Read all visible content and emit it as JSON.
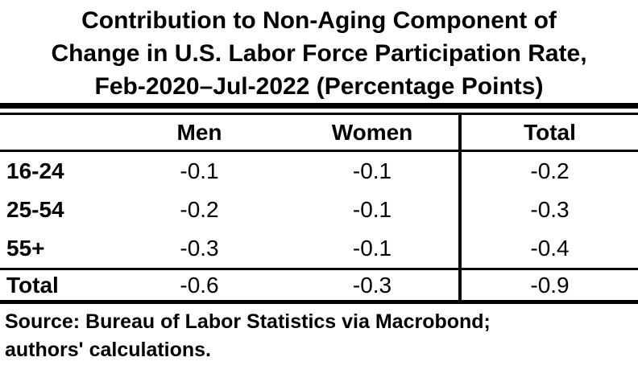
{
  "title": {
    "lines": [
      "Contribution to Non-Aging Component of",
      "Change in U.S. Labor Force Participation Rate,",
      "Feb-2020–Jul-2022 (Percentage Points)"
    ]
  },
  "table": {
    "columns": {
      "label": "",
      "men": "Men",
      "women": "Women",
      "total": "Total"
    },
    "body_rows": [
      {
        "label": "16-24",
        "values": [
          "-0.1",
          "-0.1",
          "-0.2"
        ]
      },
      {
        "label": "25-54",
        "values": [
          "-0.2",
          "-0.1",
          "-0.3"
        ]
      },
      {
        "label": "55+",
        "values": [
          "-0.3",
          "-0.1",
          "-0.4"
        ]
      }
    ],
    "total_row": {
      "label": "Total",
      "values": [
        "-0.6",
        "-0.3",
        "-0.9"
      ]
    }
  },
  "source": {
    "lines": [
      "Source: Bureau of Labor Statistics via Macrobond;",
      "authors' calculations."
    ]
  },
  "colors": {
    "text": "#000000",
    "background": "#ffffff",
    "rule": "#000000"
  },
  "chart_data": {
    "type": "table",
    "title": "Contribution to Non-Aging Component of Change in U.S. Labor Force Participation Rate, Feb-2020–Jul-2022 (Percentage Points)",
    "columns": [
      "Men",
      "Women",
      "Total"
    ],
    "row_categories": [
      "16-24",
      "25-54",
      "55+",
      "Total"
    ],
    "series": [
      {
        "name": "Men",
        "values": [
          -0.1,
          -0.2,
          -0.3,
          -0.6
        ]
      },
      {
        "name": "Women",
        "values": [
          -0.1,
          -0.1,
          -0.1,
          -0.3
        ]
      },
      {
        "name": "Total",
        "values": [
          -0.2,
          -0.3,
          -0.4,
          -0.9
        ]
      }
    ],
    "source": "Source: Bureau of Labor Statistics via Macrobond; authors' calculations.",
    "units": "percentage points"
  }
}
